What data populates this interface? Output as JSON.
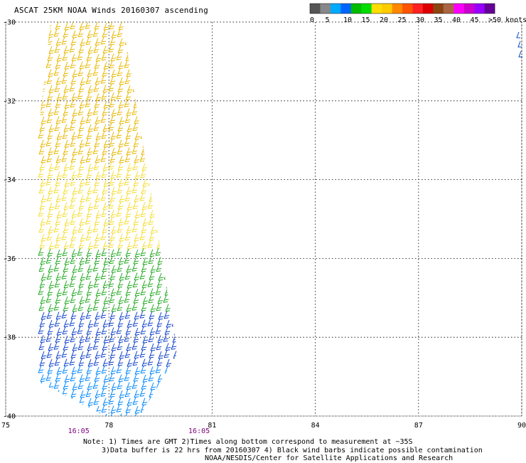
{
  "title": "ASCAT 25KM NOAA Winds 20160307 ascending",
  "colorbar": {
    "colors": [
      "#555555",
      "#888888",
      "#00aaff",
      "#0066ff",
      "#00bb00",
      "#00dd00",
      "#ffdd00",
      "#ffcc00",
      "#ff8800",
      "#ff5500",
      "#ff2222",
      "#dd0000",
      "#8b4513",
      "#aa6644",
      "#ff00ff",
      "#cc00cc",
      "#9900ff",
      "#660099"
    ],
    "labels": [
      "0",
      "5",
      "10",
      "15",
      "20",
      "25",
      "30",
      "35",
      "40",
      "45",
      ">50 knots"
    ]
  },
  "axes": {
    "lat_labels": [
      "-30",
      "-32",
      "-34",
      "-36",
      "-38",
      "-40"
    ],
    "lon_labels": [
      "75",
      "78",
      "81",
      "84",
      "87",
      "90"
    ]
  },
  "times": [
    "16:05",
    "16:05"
  ],
  "notes": {
    "line1": "Note: 1) Times are GMT 2)Times along bottom correspond to measurement at ~35S",
    "line2": "3)Data buffer is 22 hrs from 20160307 4) Black wind barbs indicate possible contamination",
    "line3": "NOAA/NESDIS/Center for Satellite Applications and Research"
  },
  "map_data": {
    "lat_range": [
      -40,
      -30
    ],
    "lon_range": [
      75,
      90
    ],
    "grid": true,
    "swath_corners_lonlat": [
      [
        76.3,
        -30
      ],
      [
        78.4,
        -30
      ],
      [
        80.0,
        -38.4
      ],
      [
        78.9,
        -40
      ],
      [
        77.9,
        -40
      ],
      [
        75.2,
        -38.8
      ]
    ],
    "speed_bands": [
      {
        "lat_from": -30.0,
        "lat_to": -33.5,
        "knots": 25,
        "color": "#e8b800"
      },
      {
        "lat_from": -33.5,
        "lat_to": -35.7,
        "knots": 22,
        "color": "#f5dd33"
      },
      {
        "lat_from": -35.7,
        "lat_to": -37.3,
        "knots": 18,
        "color": "#22aa22"
      },
      {
        "lat_from": -37.3,
        "lat_to": -38.6,
        "knots": 14,
        "color": "#1144cc"
      },
      {
        "lat_from": -38.6,
        "lat_to": -40.0,
        "knots": 10,
        "color": "#0088ff"
      }
    ],
    "high_wind_east_color": "#cc7722",
    "wind_direction": "SW"
  }
}
